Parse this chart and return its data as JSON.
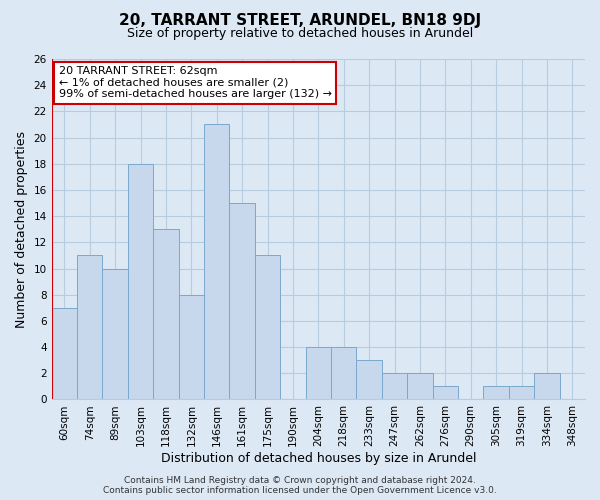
{
  "title": "20, TARRANT STREET, ARUNDEL, BN18 9DJ",
  "subtitle": "Size of property relative to detached houses in Arundel",
  "xlabel": "Distribution of detached houses by size in Arundel",
  "ylabel": "Number of detached properties",
  "bar_color": "#c8d8ec",
  "bar_edge_color": "#7aa8cc",
  "categories": [
    "60sqm",
    "74sqm",
    "89sqm",
    "103sqm",
    "118sqm",
    "132sqm",
    "146sqm",
    "161sqm",
    "175sqm",
    "190sqm",
    "204sqm",
    "218sqm",
    "233sqm",
    "247sqm",
    "262sqm",
    "276sqm",
    "290sqm",
    "305sqm",
    "319sqm",
    "334sqm",
    "348sqm"
  ],
  "values": [
    7,
    11,
    10,
    18,
    13,
    8,
    21,
    15,
    11,
    0,
    4,
    4,
    3,
    2,
    2,
    1,
    0,
    1,
    1,
    2,
    0
  ],
  "ylim": [
    0,
    26
  ],
  "yticks": [
    0,
    2,
    4,
    6,
    8,
    10,
    12,
    14,
    16,
    18,
    20,
    22,
    24,
    26
  ],
  "annotation_box_text_line1": "20 TARRANT STREET: 62sqm",
  "annotation_box_text_line2": "← 1% of detached houses are smaller (2)",
  "annotation_box_text_line3": "99% of semi-detached houses are larger (132) →",
  "annotation_box_color": "#ffffff",
  "annotation_box_edge_color": "#cc0000",
  "property_line_x": 0.5,
  "footer_line1": "Contains HM Land Registry data © Crown copyright and database right 2024.",
  "footer_line2": "Contains public sector information licensed under the Open Government Licence v3.0.",
  "background_color": "#dde8f5",
  "grid_color": "#b8cce0",
  "title_fontsize": 11,
  "subtitle_fontsize": 9,
  "axis_label_fontsize": 9,
  "tick_fontsize": 7.5,
  "annotation_fontsize": 8,
  "footer_fontsize": 6.5
}
